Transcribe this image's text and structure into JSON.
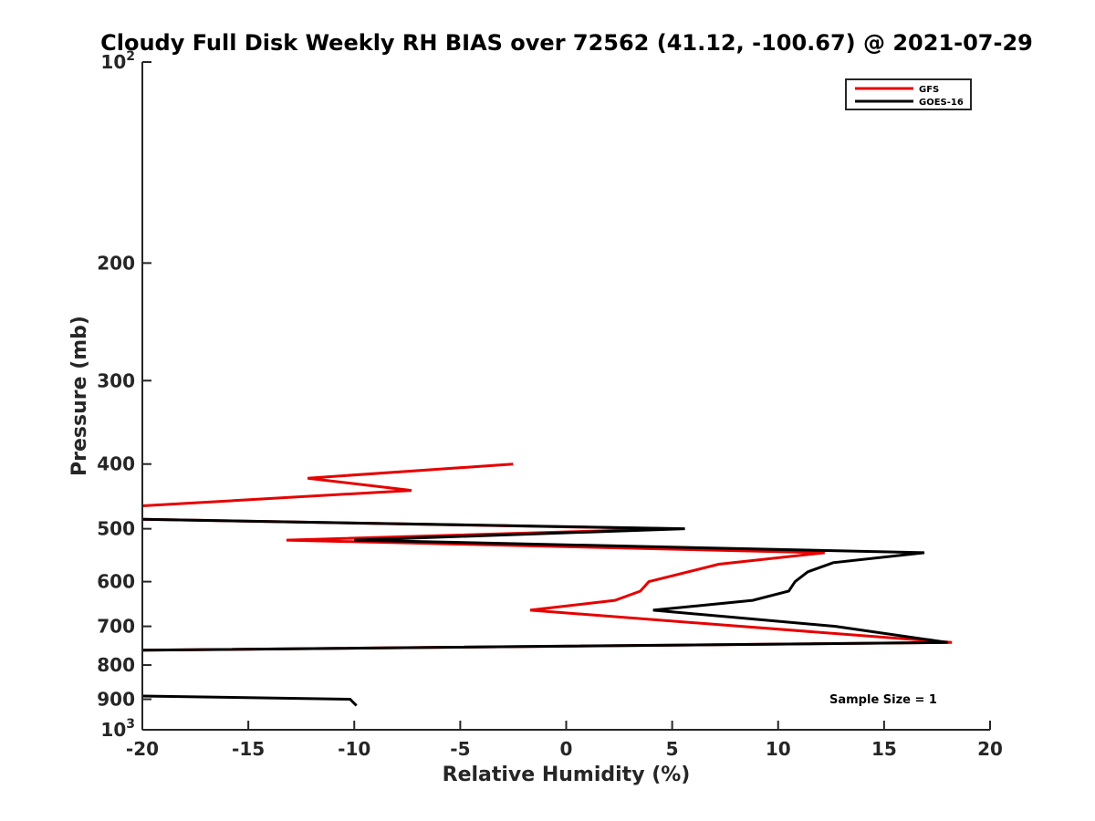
{
  "chart_data": {
    "type": "line",
    "title": "Cloudy Full Disk Weekly RH BIAS over 72562 (41.12, -100.67) @ 2021-07-29",
    "xlabel": "Relative Humidity (%)",
    "ylabel": "Pressure (mb)",
    "xlim": [
      -20,
      20
    ],
    "ylim": [
      100,
      1000
    ],
    "y_scale": "log",
    "y_reversed": true,
    "grid": false,
    "legend_position": "top-right",
    "x_ticks": [
      -20,
      -15,
      -10,
      -5,
      0,
      5,
      10,
      15,
      20
    ],
    "x_tick_labels": [
      "-20",
      "-15",
      "-10",
      "-5",
      "0",
      "5",
      "10",
      "15",
      "20"
    ],
    "y_ticks": [
      {
        "value": 100,
        "base": "10",
        "exp": "2"
      },
      {
        "value": 200,
        "label": "200"
      },
      {
        "value": 300,
        "label": "300"
      },
      {
        "value": 400,
        "label": "400"
      },
      {
        "value": 500,
        "label": "500"
      },
      {
        "value": 600,
        "label": "600"
      },
      {
        "value": 700,
        "label": "700"
      },
      {
        "value": 800,
        "label": "800"
      },
      {
        "value": 900,
        "label": "900"
      },
      {
        "value": 1000,
        "base": "10",
        "exp": "3"
      }
    ],
    "series": [
      {
        "name": "GFS",
        "color": "#e60000",
        "points": [
          {
            "x": -2.5,
            "y": 400
          },
          {
            "x": -12.2,
            "y": 420
          },
          {
            "x": -7.3,
            "y": 438
          },
          {
            "x": -20.0,
            "y": 462
          },
          {
            "x": null,
            "y": null
          },
          {
            "x": -20.0,
            "y": 484
          },
          {
            "x": 5.0,
            "y": 500
          },
          {
            "x": -13.2,
            "y": 520
          },
          {
            "x": 12.2,
            "y": 543
          },
          {
            "x": 7.2,
            "y": 565
          },
          {
            "x": 3.9,
            "y": 600
          },
          {
            "x": 3.5,
            "y": 620
          },
          {
            "x": 2.3,
            "y": 640
          },
          {
            "x": -1.7,
            "y": 662
          },
          {
            "x": 18.2,
            "y": 740
          },
          {
            "x": -20.0,
            "y": 760
          }
        ]
      },
      {
        "name": "GOES-16",
        "color": "#000000",
        "points": [
          {
            "x": -20.0,
            "y": 484
          },
          {
            "x": 5.6,
            "y": 500
          },
          {
            "x": -10.0,
            "y": 520
          },
          {
            "x": 16.9,
            "y": 543
          },
          {
            "x": 12.6,
            "y": 562
          },
          {
            "x": 11.4,
            "y": 580
          },
          {
            "x": 10.8,
            "y": 600
          },
          {
            "x": 10.5,
            "y": 620
          },
          {
            "x": 8.8,
            "y": 640
          },
          {
            "x": 4.1,
            "y": 662
          },
          {
            "x": 7.8,
            "y": 678
          },
          {
            "x": 12.7,
            "y": 700
          },
          {
            "x": 18.0,
            "y": 740
          },
          {
            "x": -20.0,
            "y": 760
          },
          {
            "x": null,
            "y": null
          },
          {
            "x": -20.0,
            "y": 890
          },
          {
            "x": -10.2,
            "y": 900
          },
          {
            "x": -9.9,
            "y": 920
          }
        ]
      }
    ],
    "annotation": "Sample Size = 1"
  }
}
